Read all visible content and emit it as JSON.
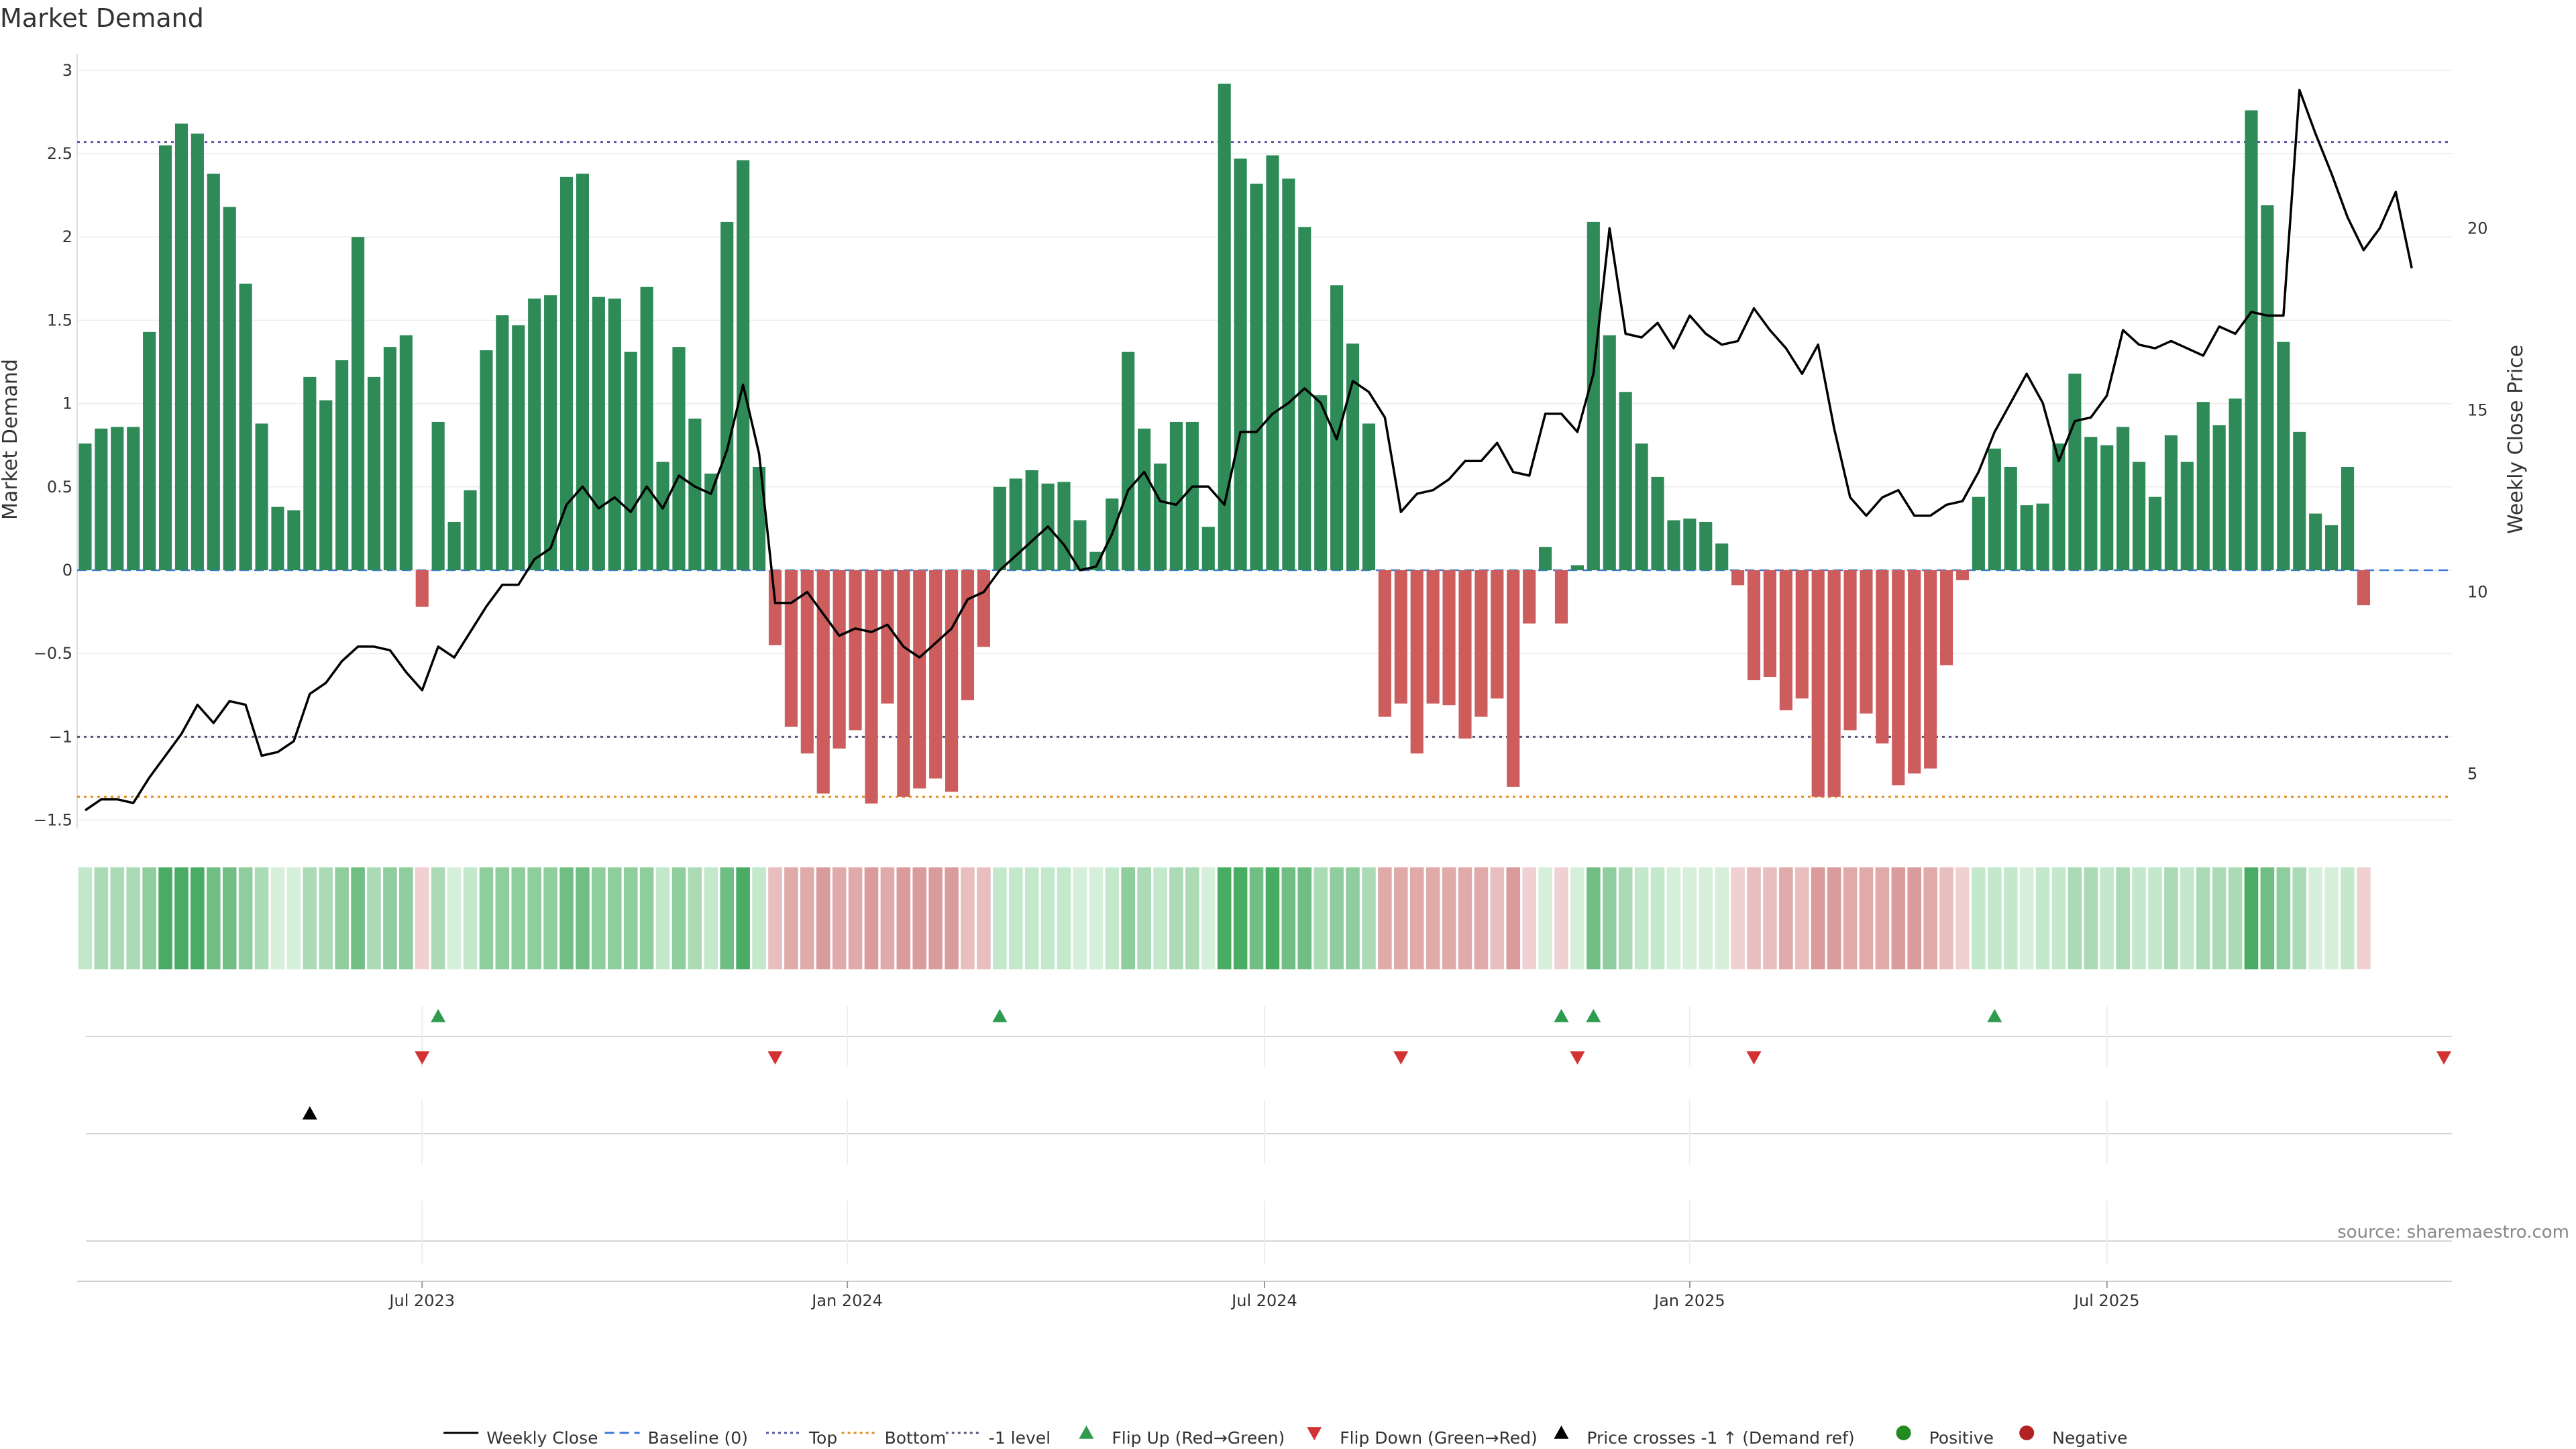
{
  "chart_data": {
    "type": "bar",
    "title": "Market Demand",
    "ylabel": "Market Demand",
    "y2label": "Weekly Close Price",
    "ylim": [
      -1.55,
      3.1
    ],
    "y2lim": [
      3.5,
      24.8
    ],
    "yticks": [
      -1.5,
      -1,
      -0.5,
      0,
      0.5,
      1,
      1.5,
      2,
      2.5,
      3
    ],
    "y2ticks": [
      5,
      10,
      15,
      20
    ],
    "xlim": [
      0,
      148
    ],
    "x_date_ticks": [
      {
        "label": "Jul 2023",
        "week": 21.5
      },
      {
        "label": "Jan 2024",
        "week": 48
      },
      {
        "label": "Jul 2024",
        "week": 74
      },
      {
        "label": "Jan 2025",
        "week": 100.5
      },
      {
        "label": "Jul 2025",
        "week": 126.5
      }
    ],
    "reference_lines": {
      "top": 2.57,
      "bottom": -1.36,
      "minus_one": -1,
      "baseline": 0
    },
    "demand": [
      0.76,
      0.85,
      0.86,
      0.86,
      1.43,
      2.55,
      2.68,
      2.62,
      2.38,
      2.18,
      1.72,
      0.88,
      0.38,
      0.36,
      1.16,
      1.02,
      1.26,
      2.0,
      1.16,
      1.34,
      1.41,
      -0.22,
      0.89,
      0.29,
      0.48,
      1.32,
      1.53,
      1.47,
      1.63,
      1.65,
      2.36,
      2.38,
      1.64,
      1.63,
      1.31,
      1.7,
      0.65,
      1.34,
      0.91,
      0.58,
      2.09,
      2.46,
      0.62,
      -0.45,
      -0.94,
      -1.1,
      -1.34,
      -1.07,
      -0.96,
      -1.4,
      -0.8,
      -1.36,
      -1.31,
      -1.25,
      -1.33,
      -0.78,
      -0.46,
      0.5,
      0.55,
      0.6,
      0.52,
      0.53,
      0.3,
      0.11,
      0.43,
      1.31,
      0.85,
      0.64,
      0.89,
      0.89,
      0.26,
      2.92,
      2.47,
      2.32,
      2.49,
      2.35,
      2.06,
      1.05,
      1.71,
      1.36,
      0.88,
      -0.88,
      -0.8,
      -1.1,
      -0.8,
      -0.81,
      -1.01,
      -0.88,
      -0.77,
      -1.3,
      -0.32,
      0.14,
      -0.32,
      0.03,
      2.09,
      1.41,
      1.07,
      0.76,
      0.56,
      0.3,
      0.31,
      0.29,
      0.16,
      -0.09,
      -0.66,
      -0.64,
      -0.84,
      -0.77,
      -1.36,
      -1.36,
      -0.96,
      -0.86,
      -1.04,
      -1.29,
      -1.22,
      -1.19,
      -0.57,
      -0.06,
      0.44,
      0.73,
      0.62,
      0.39,
      0.4,
      0.76,
      1.18,
      0.8,
      0.75,
      0.86,
      0.65,
      0.44,
      0.81,
      0.65,
      1.01,
      0.87,
      1.03,
      2.76,
      2.19,
      1.37,
      0.83,
      0.34,
      0.27,
      0.62,
      -0.21
    ],
    "weekly_close": [
      4.0,
      4.3,
      4.3,
      4.2,
      4.9,
      5.5,
      6.1,
      6.9,
      6.4,
      7.0,
      6.9,
      5.5,
      5.6,
      5.9,
      7.2,
      7.5,
      8.1,
      8.5,
      8.5,
      8.4,
      7.8,
      7.3,
      8.5,
      8.2,
      8.9,
      9.6,
      10.2,
      10.2,
      10.9,
      11.2,
      12.4,
      12.9,
      12.3,
      12.6,
      12.2,
      12.9,
      12.3,
      13.2,
      12.9,
      12.7,
      13.9,
      15.7,
      13.8,
      9.7,
      9.7,
      10.0,
      9.4,
      8.8,
      9.0,
      8.9,
      9.1,
      8.5,
      8.2,
      8.6,
      9.0,
      9.8,
      10.0,
      10.6,
      11.0,
      11.4,
      11.8,
      11.3,
      10.6,
      10.7,
      11.6,
      12.8,
      13.3,
      12.5,
      12.4,
      12.9,
      12.9,
      12.4,
      14.4,
      14.4,
      14.9,
      15.2,
      15.6,
      15.2,
      14.2,
      15.8,
      15.5,
      14.8,
      12.2,
      12.7,
      12.8,
      13.1,
      13.6,
      13.6,
      14.1,
      13.3,
      13.2,
      14.9,
      14.9,
      14.4,
      16.0,
      20.0,
      17.1,
      17.0,
      17.4,
      16.7,
      17.6,
      17.1,
      16.8,
      16.9,
      17.8,
      17.2,
      16.7,
      16.0,
      16.8,
      14.5,
      12.6,
      12.1,
      12.6,
      12.8,
      12.1,
      12.1,
      12.4,
      12.5,
      13.3,
      14.4,
      15.2,
      16.0,
      15.2,
      13.6,
      14.7,
      14.8,
      15.4,
      17.2,
      16.8,
      16.7,
      16.9,
      16.7,
      16.5,
      17.3,
      17.1,
      17.7,
      17.6,
      17.6,
      23.8,
      22.6,
      21.5,
      20.3,
      19.4,
      20.0,
      21.0,
      18.9
    ],
    "flip_up_weeks": [
      22,
      57,
      92,
      94,
      119
    ],
    "flip_down_weeks": [
      21,
      43,
      82,
      93,
      104,
      147
    ],
    "price_cross_weeks": [
      14
    ],
    "heat_colors": [
      "#aadbb5",
      "#c4e8cb",
      "#d5efdb",
      "#8fcd9e",
      "#71be85",
      "#4aab64",
      "#76c08a"
    ],
    "heat_red_colors": [
      "#f0d0d0",
      "#e8bebe",
      "#e0aaaa",
      "#d99b9b"
    ],
    "colors": {
      "positive_bar": "#2e8b57",
      "negative_bar": "#cd5c5c",
      "line": "#000000",
      "top_line": "#5a5aa8",
      "bottom_line": "#e08c1e",
      "minus_one_line": "#555577",
      "baseline": "#3a7bd5",
      "flip_up": "#2e9b4f",
      "flip_down": "#d23232",
      "cross": "#000000",
      "positive_dot": "#228b22",
      "negative_dot": "#b22222"
    },
    "legend": [
      {
        "label": "Weekly Close",
        "kind": "line-solid",
        "color": "#000000"
      },
      {
        "label": "Baseline (0)",
        "kind": "line-dash",
        "color": "#3a7bd5"
      },
      {
        "label": "Top",
        "kind": "line-dot",
        "color": "#5a5aa8"
      },
      {
        "label": "Bottom",
        "kind": "line-dot",
        "color": "#e08c1e"
      },
      {
        "label": "-1 level",
        "kind": "line-dot",
        "color": "#555577"
      },
      {
        "label": "Flip Up (Red→Green)",
        "kind": "tri-up",
        "color": "#2e9b4f"
      },
      {
        "label": "Flip Down (Green→Red)",
        "kind": "tri-down",
        "color": "#d23232"
      },
      {
        "label": "Price crosses -1 ↑ (Demand ref)",
        "kind": "tri-up",
        "color": "#000000"
      },
      {
        "label": "Positive",
        "kind": "dot",
        "color": "#228b22"
      },
      {
        "label": "Negative",
        "kind": "dot",
        "color": "#b22222"
      }
    ],
    "source": "source: sharemaestro.com"
  }
}
